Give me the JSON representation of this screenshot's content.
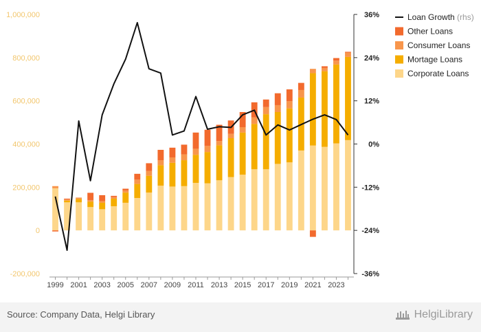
{
  "chart_data": {
    "type": "bar",
    "stacked": true,
    "categories": [
      1999,
      2000,
      2001,
      2002,
      2003,
      2004,
      2005,
      2006,
      2007,
      2008,
      2009,
      2010,
      2011,
      2012,
      2013,
      2014,
      2015,
      2016,
      2017,
      2018,
      2019,
      2020,
      2021,
      2022,
      2023,
      2024
    ],
    "x_tick_labels": [
      "1999",
      "2001",
      "2003",
      "2005",
      "2007",
      "2009",
      "2011",
      "2013",
      "2015",
      "2017",
      "2019",
      "2021",
      "2023"
    ],
    "left_axis": {
      "min": -200000,
      "max": 1000000,
      "ticks": [
        -200000,
        0,
        200000,
        400000,
        600000,
        800000,
        1000000
      ],
      "tick_labels": [
        "-200,000",
        "0",
        "200,000",
        "400,000",
        "600,000",
        "800,000",
        "1,000,000"
      ],
      "color": "#f2c66d"
    },
    "right_axis": {
      "min": -36,
      "max": 36,
      "ticks": [
        -36,
        -24,
        -12,
        0,
        12,
        24,
        36
      ],
      "tick_labels": [
        "-36%",
        "-24%",
        "-12%",
        "0%",
        "12%",
        "24%",
        "36%"
      ],
      "unit": "%"
    },
    "series": [
      {
        "name": "Corporate Loans",
        "type": "bar",
        "color": "#fdd68a",
        "values": [
          195000,
          130000,
          130000,
          108000,
          98000,
          112000,
          128000,
          150000,
          175000,
          207000,
          203000,
          205000,
          220000,
          218000,
          232000,
          247000,
          258000,
          283000,
          283000,
          308000,
          315000,
          370000,
          393000,
          387000,
          403000,
          418000
        ]
      },
      {
        "name": "Mortage Loans",
        "type": "bar",
        "color": "#f5ad00",
        "values": [
          0,
          8000,
          15000,
          25000,
          30000,
          35000,
          47000,
          65000,
          78000,
          95000,
          110000,
          120000,
          130000,
          145000,
          162000,
          180000,
          195000,
          210000,
          255000,
          240000,
          250000,
          245000,
          335000,
          350000,
          365000,
          385000
        ]
      },
      {
        "name": "Consumer Loans",
        "type": "bar",
        "color": "#f8964c",
        "values": [
          10000,
          5000,
          7000,
          7000,
          8000,
          7000,
          10000,
          20000,
          22000,
          23000,
          25000,
          27000,
          28000,
          28000,
          20000,
          20000,
          25000,
          30000,
          33000,
          32000,
          33000,
          35000,
          20000,
          15000,
          18000,
          20000
        ]
      },
      {
        "name": "Other Loans",
        "type": "bar",
        "color": "#f26a2d",
        "values": [
          -5000,
          4000,
          0,
          34000,
          27000,
          6000,
          8000,
          27000,
          36000,
          48000,
          45000,
          45000,
          75000,
          75000,
          75000,
          62000,
          70000,
          70000,
          35000,
          55000,
          55000,
          33000,
          -30000,
          8000,
          12000,
          4000
        ]
      },
      {
        "name": "Loan Growth",
        "name_suffix": "(rhs)",
        "type": "line",
        "axis": "right",
        "color": "#111111",
        "values": [
          -14.6,
          -29.5,
          6.4,
          -10.2,
          8.1,
          16.7,
          23.6,
          33.7,
          20.9,
          19.7,
          2.5,
          3.6,
          13.2,
          4.1,
          4.8,
          4.6,
          8.1,
          9.4,
          2.5,
          5.3,
          3.9,
          5.4,
          6.9,
          8.1,
          6.8,
          2.5
        ]
      }
    ],
    "legend": {
      "position": "top-right",
      "order": [
        "Loan Growth",
        "Other Loans",
        "Consumer Loans",
        "Mortage Loans",
        "Corporate Loans"
      ]
    },
    "grid": false
  },
  "footer": {
    "source": "Source: Company Data, Helgi Library",
    "brand": "HelgiLibrary"
  }
}
